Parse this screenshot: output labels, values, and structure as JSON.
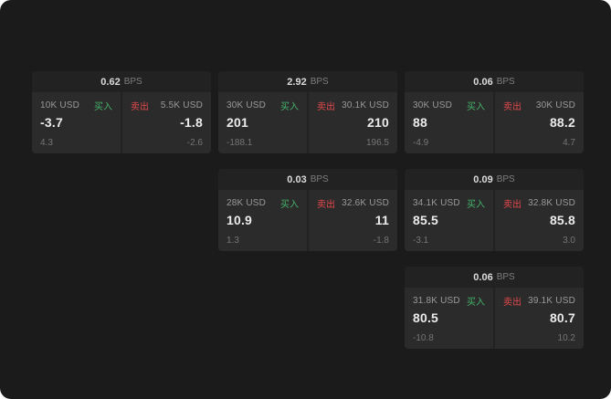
{
  "labels": {
    "bps": "BPS",
    "buy": "买入",
    "sell": "卖出"
  },
  "colors": {
    "background": "#1b1b1b",
    "card": "#222222",
    "panel": "#2b2b2b",
    "buy": "#45b36b",
    "sell": "#e5484d"
  },
  "cards": [
    {
      "col": 1,
      "row": 1,
      "bps": "0.62",
      "buy_amount": "10K USD",
      "buy_price": "-3.7",
      "buy_sub": "4.3",
      "sell_amount": "5.5K USD",
      "sell_price": "-1.8",
      "sell_sub": "-2.6"
    },
    {
      "col": 2,
      "row": 1,
      "bps": "2.92",
      "buy_amount": "30K USD",
      "buy_price": "201",
      "buy_sub": "-188.1",
      "sell_amount": "30.1K USD",
      "sell_price": "210",
      "sell_sub": "196.5"
    },
    {
      "col": 3,
      "row": 1,
      "bps": "0.06",
      "buy_amount": "30K USD",
      "buy_price": "88",
      "buy_sub": "-4.9",
      "sell_amount": "30K USD",
      "sell_price": "88.2",
      "sell_sub": "4.7"
    },
    {
      "col": 2,
      "row": 2,
      "bps": "0.03",
      "buy_amount": "28K USD",
      "buy_price": "10.9",
      "buy_sub": "1.3",
      "sell_amount": "32.6K USD",
      "sell_price": "11",
      "sell_sub": "-1.8"
    },
    {
      "col": 3,
      "row": 2,
      "bps": "0.09",
      "buy_amount": "34.1K USD",
      "buy_price": "85.5",
      "buy_sub": "-3.1",
      "sell_amount": "32.8K USD",
      "sell_price": "85.8",
      "sell_sub": "3.0"
    },
    {
      "col": 3,
      "row": 3,
      "bps": "0.06",
      "buy_amount": "31.8K USD",
      "buy_price": "80.5",
      "buy_sub": "-10.8",
      "sell_amount": "39.1K USD",
      "sell_price": "80.7",
      "sell_sub": "10.2"
    }
  ]
}
